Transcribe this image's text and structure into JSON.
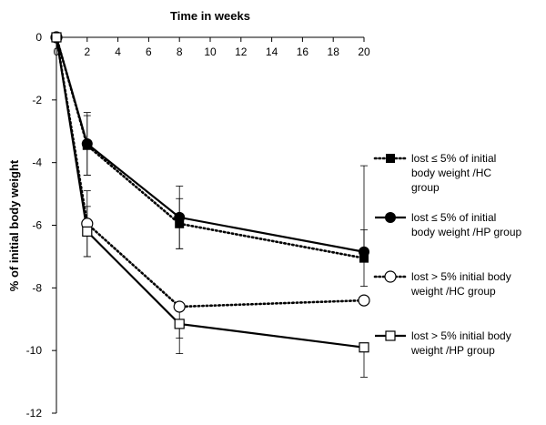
{
  "chart_data": {
    "type": "line",
    "xlabel": "Time in weeks",
    "ylabel": "% of initial body weight",
    "x": [
      0,
      2,
      8,
      20
    ],
    "xlim": [
      0,
      20
    ],
    "ylim": [
      -12,
      0
    ],
    "xticks": [
      "0",
      "2",
      "4",
      "6",
      "8",
      "10",
      "12",
      "14",
      "16",
      "18",
      "20"
    ],
    "yticks": [
      "0",
      "-2",
      "-4",
      "-6",
      "-8",
      "-10",
      "-12"
    ],
    "grid": false,
    "legend_position": "right",
    "x_axis_position": "top",
    "series": [
      {
        "name": "lost ≤ 5% of initial body weight /HC group",
        "legend_lines": [
          "lost ≤ 5% of initial",
          "body weight /HC",
          "group"
        ],
        "line_style": "dotted",
        "marker": "filled-square",
        "values": [
          0,
          -3.45,
          -5.95,
          -7.05
        ],
        "err_low": [
          0,
          0.95,
          0.8,
          0.9
        ],
        "err_high": [
          0,
          0.95,
          0.8,
          0.9
        ]
      },
      {
        "name": "lost ≤ 5% of initial body weight /HP group",
        "legend_lines": [
          "lost ≤ 5% of initial",
          "body weight /HP group"
        ],
        "line_style": "solid",
        "marker": "filled-circle",
        "values": [
          0,
          -3.4,
          -5.75,
          -6.85
        ],
        "err_low": [
          0,
          1.0,
          1.0,
          0
        ],
        "err_high": [
          0,
          1.0,
          1.0,
          2.75
        ]
      },
      {
        "name": "lost > 5% initial body weight /HC group",
        "legend_lines": [
          "lost > 5% initial body",
          "weight /HC group"
        ],
        "line_style": "dotted",
        "marker": "open-circle",
        "values": [
          0,
          -5.95,
          -8.6,
          -8.4
        ],
        "err_low": [
          0,
          1.05,
          1.0,
          0
        ],
        "err_high": [
          0,
          1.05,
          0,
          0
        ]
      },
      {
        "name": "lost > 5% initial body weight /HP group",
        "legend_lines": [
          "lost > 5% initial body",
          "weight /HP group"
        ],
        "line_style": "solid",
        "marker": "open-square",
        "values": [
          0,
          -6.2,
          -9.15,
          -9.9
        ],
        "err_low": [
          0,
          0.8,
          0.95,
          0.95
        ],
        "err_high": [
          0,
          0.8,
          0,
          0
        ]
      }
    ]
  }
}
